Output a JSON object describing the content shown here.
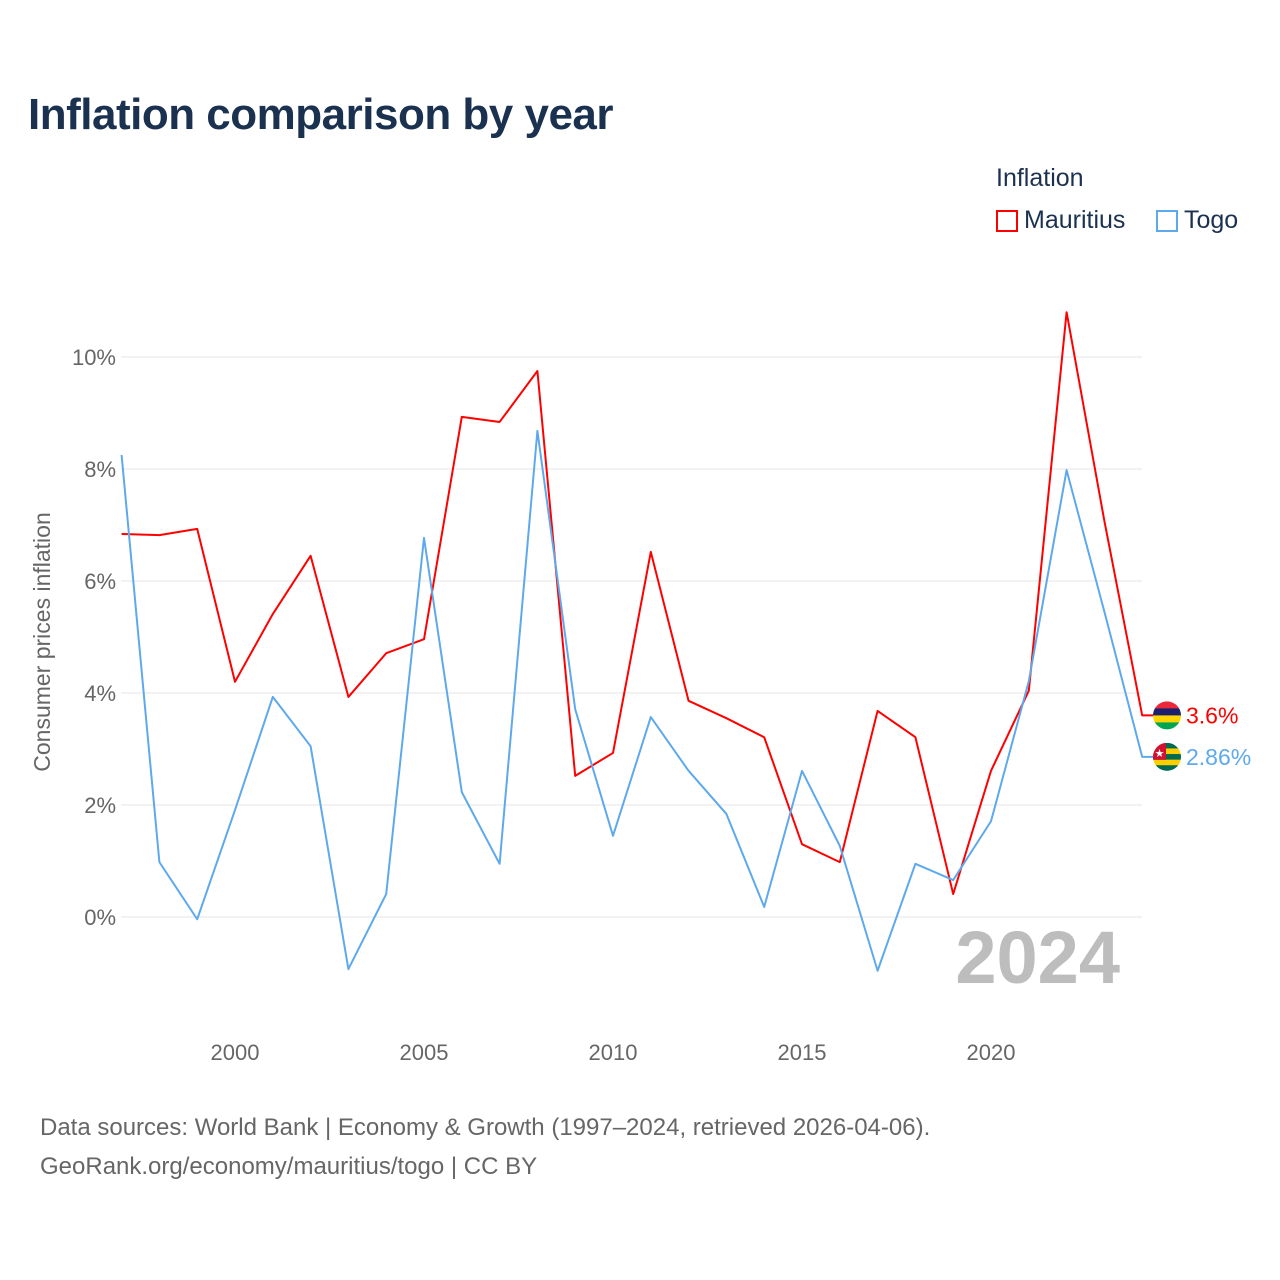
{
  "title": "Inflation comparison by year",
  "legend": {
    "title": "Inflation",
    "items": [
      {
        "label": "Mauritius",
        "color": "#ff0000"
      },
      {
        "label": "Togo",
        "color": "#5ea9ec"
      }
    ]
  },
  "footer": {
    "line1": "Data sources: World Bank | Economy & Growth (1997–2024, retrieved 2026-04-06).",
    "line2": "GeoRank.org/economy/mauritius/togo | CC BY"
  },
  "chart_data": {
    "type": "line",
    "title": "Inflation comparison by year",
    "xlabel": "",
    "ylabel": "Consumer prices inflation",
    "year_watermark": "2024",
    "x": [
      1997,
      1998,
      1999,
      2000,
      2001,
      2002,
      2003,
      2004,
      2005,
      2006,
      2007,
      2008,
      2009,
      2010,
      2011,
      2012,
      2013,
      2014,
      2015,
      2016,
      2017,
      2018,
      2019,
      2020,
      2021,
      2022,
      2023,
      2024
    ],
    "xticks": [
      "2000",
      "2005",
      "2010",
      "2015",
      "2020"
    ],
    "yticks": [
      "0%",
      "2%",
      "4%",
      "6%",
      "8%",
      "10%"
    ],
    "xlim": [
      1997,
      2024.3
    ],
    "ylim": [
      -1.5,
      11
    ],
    "grid": true,
    "series": [
      {
        "name": "Mauritius",
        "color": "#ff0000",
        "end_label": "3.6%",
        "values": [
          6.84,
          6.82,
          6.93,
          4.2,
          5.41,
          6.45,
          3.93,
          4.71,
          4.96,
          8.93,
          8.84,
          9.75,
          2.52,
          2.93,
          6.52,
          3.86,
          3.55,
          3.21,
          1.3,
          0.98,
          3.68,
          3.21,
          0.41,
          2.61,
          4.04,
          10.8,
          7.07,
          3.6
        ]
      },
      {
        "name": "Togo",
        "color": "#5ea9ec",
        "end_label": "2.86%",
        "values": [
          8.25,
          0.98,
          -0.04,
          1.91,
          3.93,
          3.05,
          -0.93,
          0.41,
          6.77,
          2.23,
          0.95,
          8.68,
          3.71,
          1.45,
          3.57,
          2.61,
          1.84,
          0.18,
          2.61,
          1.27,
          -0.96,
          0.95,
          0.66,
          1.71,
          4.21,
          7.98,
          5.45,
          2.86
        ]
      }
    ]
  }
}
